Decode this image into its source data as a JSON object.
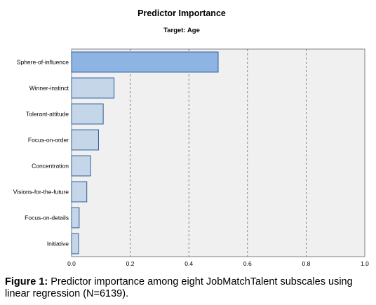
{
  "chart_data": {
    "type": "bar",
    "orientation": "horizontal",
    "title": "Predictor Importance",
    "subtitle": "Target: Age",
    "categories": [
      "Sphere-of-influence",
      "Winner-instinct",
      "Tolerant-attitude",
      "Focus-on-order",
      "Concentration",
      "Visions-for-the-future",
      "Focus-on-details",
      "Initiative"
    ],
    "values": [
      0.5,
      0.145,
      0.108,
      0.092,
      0.065,
      0.052,
      0.026,
      0.024
    ],
    "xlim": [
      0.0,
      1.0
    ],
    "xticks": [
      "0.0",
      "0.2",
      "0.4",
      "0.6",
      "0.8",
      "1.0"
    ],
    "xtick_values": [
      0.0,
      0.2,
      0.4,
      0.6,
      0.8,
      1.0
    ],
    "grid": "vertical dashed",
    "colors": {
      "plot_background": "#f0f0f0",
      "top_bar_fill": "#8db4e2",
      "bar_fill": "#c5d6e8",
      "bar_stroke": "#2f5e9e",
      "grid": "#666666"
    }
  },
  "caption": {
    "label": "Figure 1:",
    "text": "Predictor importance among eight JobMatchTalent subscales using linear regression (N=6139)."
  }
}
